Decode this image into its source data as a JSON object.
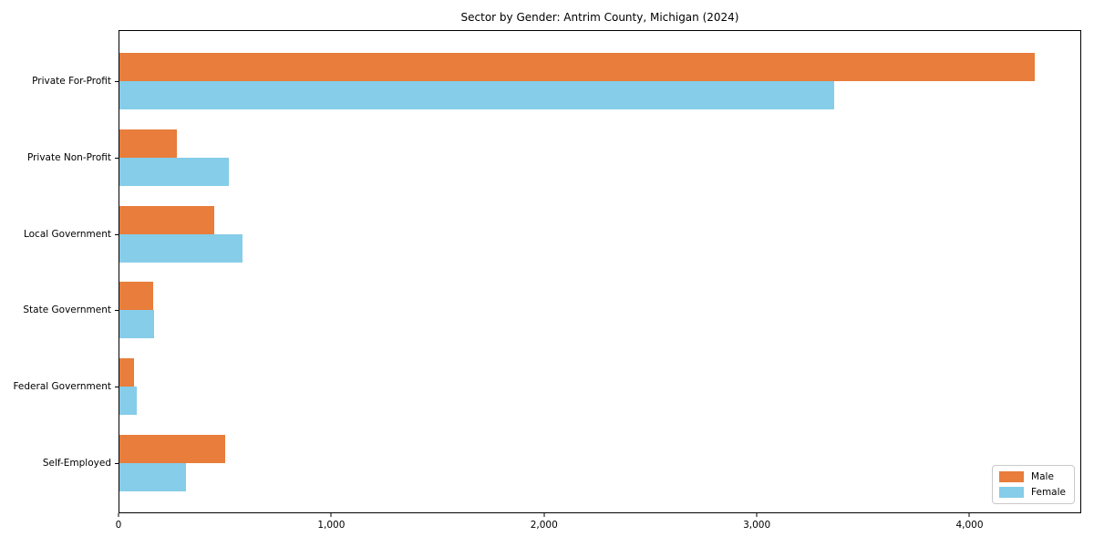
{
  "title": "Sector by Gender: Antrim County, Michigan (2024)",
  "chart_data": {
    "type": "bar",
    "orientation": "horizontal",
    "title": "Sector by Gender: Antrim County, Michigan (2024)",
    "xlabel": "",
    "ylabel": "",
    "categories": [
      "Private For-Profit",
      "Private Non-Profit",
      "Local Government",
      "State Government",
      "Federal Government",
      "Self-Employed"
    ],
    "series": [
      {
        "name": "Male",
        "color": "#e87d3c",
        "values": [
          4310,
          270,
          445,
          160,
          70,
          500
        ]
      },
      {
        "name": "Female",
        "color": "#85cde8",
        "values": [
          3365,
          515,
          580,
          162,
          82,
          315
        ]
      }
    ],
    "xlim": [
      0,
      4525
    ],
    "xticks": [
      0,
      1000,
      2000,
      3000,
      4000
    ],
    "xtick_labels": [
      "0",
      "1,000",
      "2,000",
      "3,000",
      "4,000"
    ],
    "grid": false,
    "legend_position": "lower right",
    "legend_labels": [
      "Male",
      "Female"
    ]
  }
}
